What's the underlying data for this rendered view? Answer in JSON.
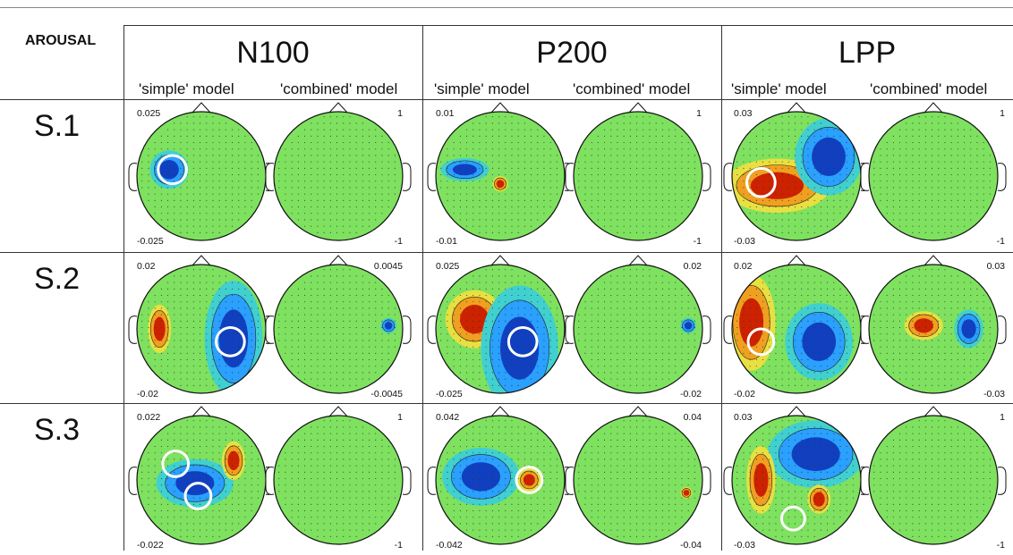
{
  "corner_label": "AROUSAL",
  "components": [
    {
      "name": "N100",
      "simple_label": "'simple' model",
      "combined_label": "'combined' model"
    },
    {
      "name": "P200",
      "simple_label": "'simple' model",
      "combined_label": "'combined' model"
    },
    {
      "name": "LPP",
      "simple_label": "'simple' model",
      "combined_label": "'combined' model"
    }
  ],
  "rows": [
    {
      "label": "S.1",
      "maps": [
        {
          "max": "0.025",
          "min": "-0.025"
        },
        {
          "max": "1",
          "min": "-1"
        },
        {
          "max": "0.01",
          "min": "-0.01"
        },
        {
          "max": "1",
          "min": "-1"
        },
        {
          "max": "0.03",
          "min": "-0.03"
        },
        {
          "max": "1",
          "min": "-1"
        }
      ]
    },
    {
      "label": "S.2",
      "maps": [
        {
          "max": "0.02",
          "min": "-0.02"
        },
        {
          "max": "0.0045",
          "min": "-0.0045"
        },
        {
          "max": "0.025",
          "min": "-0.025"
        },
        {
          "max": "0.02",
          "min": "-0.02"
        },
        {
          "max": "0.02",
          "min": "-0.02"
        },
        {
          "max": "0.03",
          "min": "-0.03"
        }
      ]
    },
    {
      "label": "S.3",
      "maps": [
        {
          "max": "0.022",
          "min": "-0.022"
        },
        {
          "max": "1",
          "min": "-1"
        },
        {
          "max": "0.042",
          "min": "-0.042"
        },
        {
          "max": "0.04",
          "min": "-0.04"
        },
        {
          "max": "0.03",
          "min": "-0.03"
        },
        {
          "max": "1",
          "min": "-1"
        }
      ]
    }
  ],
  "colors": {
    "neutral": "#7ee15f",
    "positive": "#cc2200",
    "negative": "#1040c0",
    "marker": "#ffffff"
  }
}
